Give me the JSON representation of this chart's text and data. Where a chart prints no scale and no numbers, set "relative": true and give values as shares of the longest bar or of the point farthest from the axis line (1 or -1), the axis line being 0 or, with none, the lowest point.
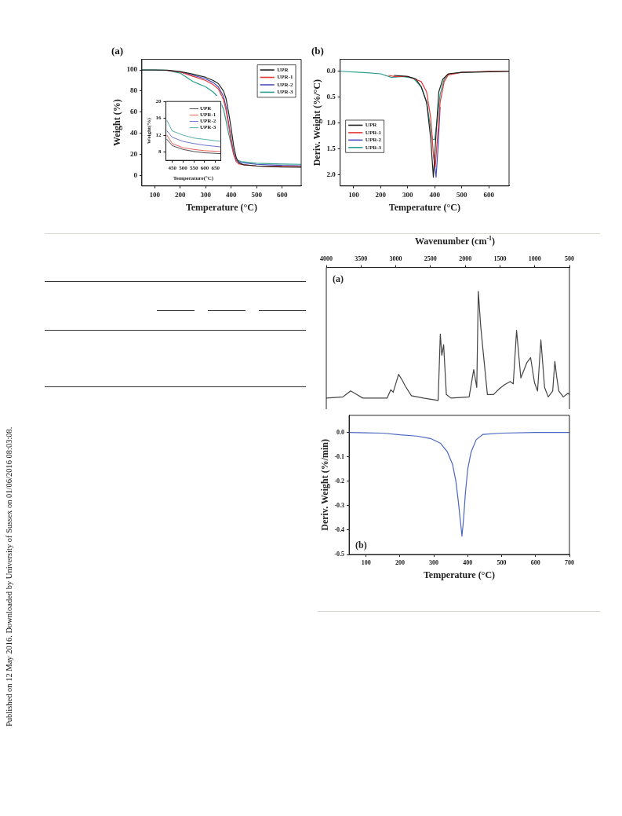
{
  "chart_data": [
    {
      "type": "line",
      "title": "(a)",
      "xlabel": "Temperature (°C)",
      "ylabel": "Weight (%)",
      "xlim": [
        50,
        675
      ],
      "xticks": [
        100,
        200,
        300,
        400,
        500,
        600
      ],
      "ylim": [
        -10,
        110
      ],
      "yticks": [
        0,
        20,
        40,
        60,
        80,
        100
      ],
      "grid": false,
      "legend": "top right",
      "marker": "none",
      "line_style": "solid",
      "annotations": [
        "Published on 12 May 2016. Downloaded by University of Sussex on 01/06/2016 08:03:08."
      ],
      "series": [
        {
          "name": "UPR",
          "color": "#222222",
          "x": [
            50,
            100,
            150,
            200,
            250,
            300,
            330,
            350,
            370,
            380,
            390,
            400,
            410,
            420,
            430,
            450,
            500,
            600,
            675
          ],
          "values": [
            100,
            100,
            99.8,
            98.5,
            96,
            93,
            90,
            87,
            80,
            73,
            60,
            45,
            28,
            17,
            12,
            10,
            9,
            8,
            7.8
          ]
        },
        {
          "name": "UPR-1",
          "color": "#e53935",
          "x": [
            150,
            200,
            250,
            300,
            330,
            350,
            370,
            380,
            390,
            400,
            410,
            420,
            430,
            450,
            500,
            600,
            675
          ],
          "values": [
            99.6,
            98,
            94,
            90,
            86,
            82,
            72,
            62,
            48,
            33,
            20,
            13,
            11,
            10,
            9,
            8.5,
            8.3
          ]
        },
        {
          "name": "UPR-2",
          "color": "#4a4fc0",
          "x": [
            200,
            250,
            300,
            330,
            350,
            370,
            380,
            390,
            400,
            410,
            420,
            440,
            500,
            600,
            675
          ],
          "values": [
            98,
            95,
            91.5,
            88,
            84,
            75,
            65,
            50,
            35,
            22,
            14,
            12,
            10.5,
            9.5,
            9.2
          ]
        },
        {
          "name": "UPR-3",
          "color": "#2a9d8f",
          "x": [
            50,
            100,
            150,
            200,
            250,
            300,
            330,
            350,
            370,
            380,
            390,
            400,
            410,
            420,
            440,
            500,
            600,
            675
          ],
          "values": [
            100,
            100,
            99.5,
            97,
            89,
            84,
            79,
            74,
            63,
            52,
            40,
            30,
            20,
            15,
            13,
            11.5,
            10.8,
            10.5
          ]
        }
      ]
    },
    {
      "type": "line",
      "xlabel": "Temperature(°C)",
      "ylabel": "Weight(%)",
      "xlim": [
        420,
        675
      ],
      "xticks": [
        450,
        500,
        550,
        600,
        650
      ],
      "ylim": [
        6,
        20
      ],
      "yticks": [
        8,
        12,
        16,
        20
      ],
      "grid": false,
      "legend": "top right",
      "marker": "none",
      "line_style": "solid",
      "series": [
        {
          "name": "UPR",
          "color": "#222222",
          "x": [
            425,
            450,
            500,
            550,
            600,
            675
          ],
          "values": [
            11,
            9.5,
            8.6,
            8.1,
            7.8,
            7.6
          ]
        },
        {
          "name": "UPR-1",
          "color": "#e53935",
          "x": [
            425,
            450,
            500,
            550,
            600,
            675
          ],
          "values": [
            12,
            10,
            9,
            8.6,
            8.3,
            8.1
          ]
        },
        {
          "name": "UPR-2",
          "color": "#4a4fc0",
          "x": [
            425,
            450,
            500,
            550,
            600,
            675
          ],
          "values": [
            13,
            11.5,
            10.5,
            10,
            9.6,
            9.2
          ]
        },
        {
          "name": "UPR-3",
          "color": "#2a9d8f",
          "x": [
            425,
            450,
            500,
            550,
            600,
            675
          ],
          "values": [
            15.5,
            13,
            12,
            11.3,
            11,
            10.5
          ]
        }
      ]
    },
    {
      "type": "line",
      "title": "(b)",
      "xlabel": "Temperature (°C)",
      "ylabel": "Deriv. Weight (%/°C)",
      "xlim": [
        50,
        675
      ],
      "xticks": [
        100,
        200,
        300,
        400,
        500,
        600
      ],
      "ylim": [
        2.22,
        -0.23
      ],
      "yticks": [
        {
          "value": 0,
          "label": "0.0"
        },
        0.5,
        {
          "value": 1,
          "label": "1.0"
        },
        1.5,
        {
          "value": 2,
          "label": "2.0"
        }
      ],
      "grid": false,
      "legend": "left",
      "marker": "none",
      "line_style": "solid",
      "series": [
        {
          "name": "UPR",
          "color": "#222222",
          "x": [
            250,
            300,
            330,
            350,
            370,
            385,
            395,
            405,
            415,
            430,
            450,
            500,
            600,
            675
          ],
          "values": [
            0.08,
            0.1,
            0.15,
            0.3,
            0.6,
            1.3,
            2.05,
            1.2,
            0.4,
            0.15,
            0.05,
            0.02,
            0.01,
            0
          ]
        },
        {
          "name": "UPR-1",
          "color": "#e53935",
          "x": [
            230,
            250,
            300,
            350,
            370,
            385,
            395,
            402,
            410,
            420,
            435,
            450,
            500,
            600,
            675
          ],
          "values": [
            0.08,
            0.1,
            0.1,
            0.2,
            0.4,
            0.9,
            1.6,
            1.85,
            1.3,
            0.6,
            0.2,
            0.07,
            0.02,
            0,
            0
          ]
        },
        {
          "name": "UPR-2",
          "color": "#4a4fc0",
          "x": [
            395,
            405,
            412,
            420
          ],
          "values": [
            1.6,
            2.05,
            1.5,
            0.7
          ]
        },
        {
          "name": "UPR-3",
          "color": "#2a9d8f",
          "x": [
            50,
            150,
            200,
            240,
            280,
            320,
            350,
            370,
            385,
            392,
            400,
            410,
            420,
            435,
            450,
            500,
            675
          ],
          "values": [
            0,
            0.03,
            0.05,
            0.12,
            0.1,
            0.13,
            0.3,
            0.6,
            1.1,
            1.32,
            1.32,
            0.9,
            0.45,
            0.15,
            0.06,
            0.02,
            0
          ]
        }
      ]
    },
    {
      "type": "line",
      "relative": true,
      "xlabel": "Wavenumber (cm$^{-1}$)",
      "xlim": [
        4000,
        500
      ],
      "xticks": [
        4000,
        3500,
        3000,
        2500,
        2000,
        1500,
        1000,
        500
      ],
      "tick_labels": "x",
      "grid": false,
      "marker": "none",
      "line_style": "solid",
      "annotations": [
        "(a)"
      ],
      "series": [
        {
          "color": "#444444",
          "x": [
            4000,
            3760,
            3716,
            3650,
            3562,
            3475,
            3125,
            3072,
            3037,
            2959,
            2906,
            2862,
            2775,
            2600,
            2390,
            2359,
            2337,
            2311,
            2272,
            2206,
            1944,
            1878,
            1834,
            1812,
            1778,
            1747,
            1681,
            1594,
            1506,
            1441,
            1353,
            1309,
            1261,
            1200,
            1112,
            1059,
            1003,
            959,
            911,
            858,
            806,
            741,
            710,
            684,
            653,
            588,
            522,
            500
          ],
          "values": [
            0.1,
            0.11,
            0.13,
            0.16,
            0.13,
            0.1,
            0.1,
            0.17,
            0.15,
            0.3,
            0.25,
            0.2,
            0.12,
            0.1,
            0.08,
            0.64,
            0.46,
            0.55,
            0.13,
            0.1,
            0.11,
            0.34,
            0.19,
            1,
            0.71,
            0.52,
            0.13,
            0.13,
            0.18,
            0.21,
            0.24,
            0.22,
            0.67,
            0.27,
            0.4,
            0.44,
            0.23,
            0.16,
            0.59,
            0.19,
            0.11,
            0.16,
            0.41,
            0.28,
            0.16,
            0.11,
            0.14,
            0.13
          ]
        }
      ]
    },
    {
      "type": "line",
      "xlabel": "Temperature (°C)",
      "ylabel": "Deriv. Weight (%/min)",
      "xlim": [
        50,
        700
      ],
      "xticks": [
        100,
        200,
        300,
        400,
        500,
        600,
        700
      ],
      "ylim": [
        -0.5,
        0.07
      ],
      "yticks": [
        -0.5,
        -0.4,
        -0.3,
        -0.2,
        -0.1,
        {
          "value": 0,
          "label": "0.0"
        }
      ],
      "grid": false,
      "marker": "none",
      "line_style": "solid",
      "annotations": [
        "(b)"
      ],
      "series": [
        {
          "color": "#4a66c0",
          "x": [
            50,
            100,
            150,
            200,
            250,
            290,
            320,
            340,
            355,
            365,
            372,
            378,
            383,
            388,
            393,
            400,
            410,
            425,
            445,
            500,
            600,
            700
          ],
          "values": [
            0,
            -0.002,
            -0.003,
            -0.01,
            -0.015,
            -0.025,
            -0.045,
            -0.08,
            -0.13,
            -0.2,
            -0.28,
            -0.36,
            -0.425,
            -0.35,
            -0.25,
            -0.15,
            -0.08,
            -0.03,
            -0.008,
            -0.003,
            0,
            0
          ]
        }
      ]
    }
  ]
}
